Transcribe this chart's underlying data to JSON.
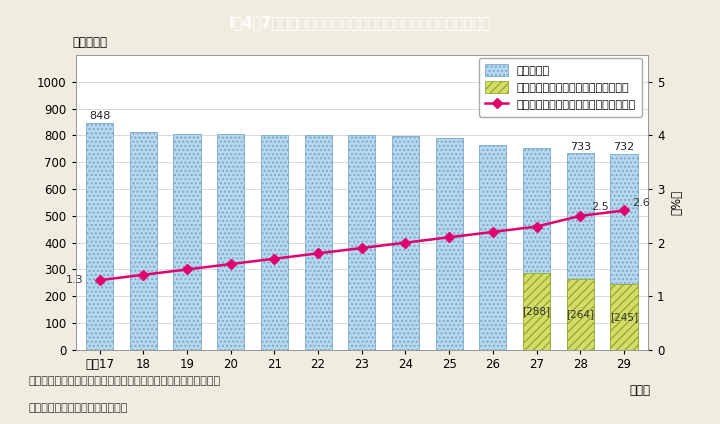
{
  "title": "I－4－7図　消防本部数及び消防吏員に占める女性の割合の推移",
  "title_bg_color": "#5bc8d2",
  "title_text_color": "#ffffff",
  "years": [
    "平成17",
    "18",
    "19",
    "20",
    "21",
    "22",
    "23",
    "24",
    "25",
    "26",
    "27",
    "28",
    "29"
  ],
  "total_honbu": [
    848,
    813,
    806,
    806,
    803,
    802,
    800,
    797,
    790,
    763,
    752,
    733,
    732
  ],
  "no_female_honbu": [
    0,
    0,
    0,
    0,
    0,
    0,
    0,
    0,
    0,
    0,
    288,
    264,
    245
  ],
  "female_ratio": [
    1.3,
    1.4,
    1.5,
    1.6,
    1.7,
    1.8,
    1.9,
    2.0,
    2.1,
    2.2,
    2.3,
    2.5,
    2.6
  ],
  "bar_main_color": "#b8d8f0",
  "bar_no_female_color": "#d4dd6a",
  "line_color": "#e0006e",
  "bg_color": "#f0ece0",
  "plot_bg_color": "#ffffff",
  "ylabel_left": "（本部数）",
  "ylabel_right": "（%）",
  "xlabel": "（年）",
  "ylim_left": [
    0,
    1100
  ],
  "ylim_right": [
    0,
    5.5
  ],
  "yticks_left": [
    0,
    100,
    200,
    300,
    400,
    500,
    600,
    700,
    800,
    900,
    1000
  ],
  "yticks_right": [
    0,
    1,
    2,
    3,
    4,
    5
  ],
  "legend_label_honbu": "消防本部数",
  "legend_label_nofemale": "うち女性消防吏員がいない消防本部数",
  "legend_label_ratio": "消防吏員に占める女性の割合（右目盛）",
  "note1": "（備考）１．消防庁「消防防災・震災対策現況調査」より作成。",
  "note2": "　　　　２．各年４月１日現在。",
  "bar_top_labels": [
    "848",
    "",
    "",
    "",
    "",
    "",
    "",
    "",
    "",
    "",
    "",
    "733",
    "732"
  ],
  "no_female_labels": [
    "",
    "",
    "",
    "",
    "",
    "",
    "",
    "",
    "",
    "",
    "[288]",
    "[264]",
    "[245]"
  ],
  "ratio_first_label": "1.3",
  "ratio_28_label": "2.5",
  "ratio_29_label": "2.6"
}
